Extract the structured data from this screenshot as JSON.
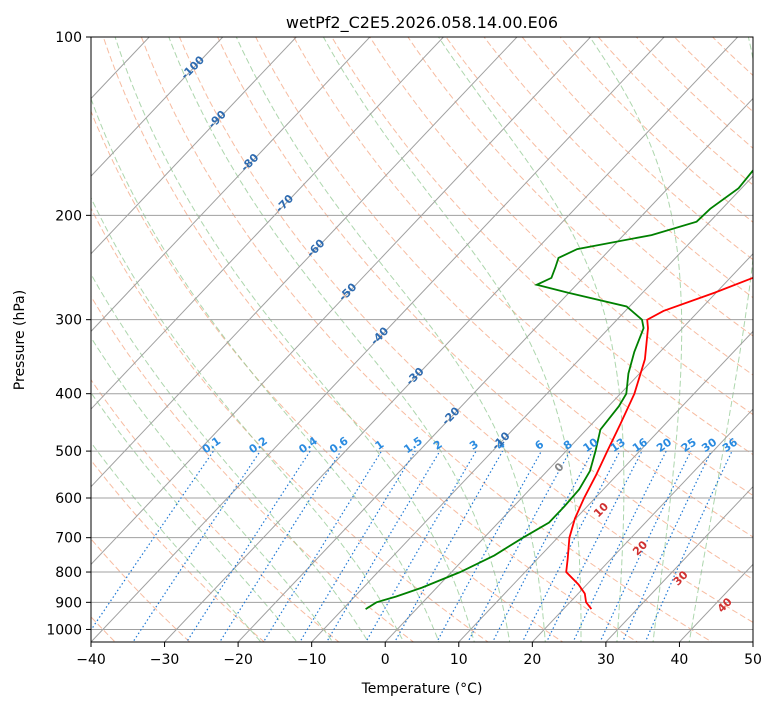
{
  "chart_data": {
    "type": "line",
    "subtype": "skew-t log-p",
    "title": "wetPf2_C2E5.2026.058.14.00.E06",
    "xlabel": "Temperature (°C)",
    "ylabel": "Pressure (hPa)",
    "xlim": [
      -40,
      50
    ],
    "ylim": [
      1050,
      100
    ],
    "x_ticks": [
      -40,
      -30,
      -20,
      -10,
      0,
      10,
      20,
      30,
      40,
      50
    ],
    "x_tick_labels": [
      "−40",
      "−30",
      "−20",
      "−10",
      "0",
      "10",
      "20",
      "30",
      "40",
      "50"
    ],
    "y_ticks": [
      1000,
      900,
      800,
      700,
      600,
      500,
      400,
      300,
      200,
      100
    ],
    "y_tick_labels": [
      "1000",
      "900",
      "800",
      "700",
      "600",
      "500",
      "400",
      "300",
      "200",
      "100"
    ],
    "skew_deg_per_log_unit": 76.3,
    "isotherms": [
      -140,
      -130,
      -120,
      -110,
      -100,
      -90,
      -80,
      -70,
      -60,
      -50,
      -40,
      -30,
      -20,
      -10,
      0,
      10,
      20,
      30,
      40,
      50
    ],
    "dry_adiabats_theta_c": [
      -70,
      -60,
      -50,
      -40,
      -30,
      -20,
      -10,
      0,
      10,
      20,
      30,
      40,
      50,
      60,
      70,
      80,
      90,
      100,
      110,
      120,
      130,
      140,
      150,
      160,
      170,
      180,
      190,
      200,
      210,
      220
    ],
    "moist_adiabat_starts_c": [
      -20,
      -15,
      -10,
      -5,
      0,
      5,
      10,
      15,
      20,
      25,
      30,
      35,
      40
    ],
    "mixing_ratios": [
      0.1,
      0.2,
      0.4,
      0.6,
      1,
      1.5,
      2,
      3,
      4,
      6,
      8,
      10,
      13,
      16,
      20,
      25,
      30,
      36
    ],
    "mixing_ratio_labels": [
      "0.1",
      "0.2",
      "0.4",
      "0.6",
      "1",
      "1.5",
      "2",
      "3",
      "4",
      "6",
      "8",
      "10",
      "13",
      "16",
      "20",
      "25",
      "30",
      "36"
    ],
    "saturation_labels": [
      "-100",
      "-90",
      "-80",
      "-70",
      "-60",
      "-50",
      "-40",
      "-30",
      "-20",
      "-10"
    ],
    "saturation_labels_isotherm_c": [
      -100,
      -90,
      -80,
      -70,
      -60,
      -50,
      -40,
      -30,
      -20,
      -10
    ],
    "saturation_labels_pressure": [
      112,
      137,
      162,
      190,
      226,
      268,
      318,
      372,
      434,
      478
    ],
    "dry_adiabat_labels": [
      "0",
      "10",
      "20",
      "30",
      "40"
    ],
    "dry_adiabat_labels_temp_c": [
      24,
      29.7,
      35,
      40.5,
      46.5
    ],
    "dry_adiabat_labels_pressure": [
      530,
      625,
      725,
      815,
      905
    ],
    "series": [
      {
        "name": "Temperature",
        "color": "#ff0000",
        "points": [
          [
            924,
            23.8
          ],
          [
            900,
            22.2
          ],
          [
            870,
            20.9
          ],
          [
            840,
            18.9
          ],
          [
            800,
            15.6
          ],
          [
            760,
            14.1
          ],
          [
            700,
            11.6
          ],
          [
            650,
            9.9
          ],
          [
            600,
            8.5
          ],
          [
            550,
            7.2
          ],
          [
            500,
            5.6
          ],
          [
            450,
            3.9
          ],
          [
            400,
            1.9
          ],
          [
            350,
            -1.1
          ],
          [
            310,
            -4.7
          ],
          [
            300,
            -5.9
          ],
          [
            290,
            -4.8
          ],
          [
            270,
            -0.2
          ],
          [
            250,
            4.2
          ],
          [
            230,
            7.0
          ],
          [
            210,
            8.3
          ],
          [
            190,
            9.4
          ],
          [
            175,
            11.6
          ],
          [
            160,
            13.8
          ],
          [
            140,
            16.7
          ],
          [
            120,
            18.1
          ],
          [
            110,
            19.5
          ],
          [
            100,
            22.1
          ]
        ]
      },
      {
        "name": "Dewpoint",
        "color": "#008000",
        "points": [
          [
            924,
            -6.9
          ],
          [
            900,
            -6.3
          ],
          [
            880,
            -4.4
          ],
          [
            850,
            -2.0
          ],
          [
            800,
            1.2
          ],
          [
            750,
            3.7
          ],
          [
            700,
            5.3
          ],
          [
            660,
            6.9
          ],
          [
            620,
            6.9
          ],
          [
            580,
            6.7
          ],
          [
            540,
            5.8
          ],
          [
            500,
            4.0
          ],
          [
            460,
            1.9
          ],
          [
            420,
            1.4
          ],
          [
            400,
            0.8
          ],
          [
            370,
            -1.5
          ],
          [
            340,
            -3.5
          ],
          [
            310,
            -5.3
          ],
          [
            300,
            -6.6
          ],
          [
            285,
            -10.4
          ],
          [
            270,
            -20.2
          ],
          [
            262,
            -25.4
          ],
          [
            255,
            -24.3
          ],
          [
            245,
            -25.1
          ],
          [
            236,
            -25.9
          ],
          [
            228,
            -24.5
          ],
          [
            216,
            -16.2
          ],
          [
            205,
            -11.8
          ],
          [
            195,
            -11.6
          ],
          [
            180,
            -10.4
          ],
          [
            165,
            -10.8
          ],
          [
            150,
            -10.1
          ],
          [
            140,
            -8.8
          ],
          [
            125,
            -6.5
          ],
          [
            115,
            -3.4
          ],
          [
            106,
            1.4
          ],
          [
            100,
            4.1
          ]
        ]
      }
    ],
    "colors": {
      "temperature": "#ff0000",
      "dewpoint": "#008000",
      "isotherm": "#a0a0a0",
      "isobar": "#a0a0a0",
      "dry_adiabat": "#f4a582",
      "moist_adiabat": "#91c891",
      "mixing_ratio": "#1f78d4",
      "saturation_label": "#2e6bb0",
      "dry_label": "#d03030",
      "zero_label": "#888888",
      "boundary_curve": "#d9c3a3"
    },
    "grid": true
  }
}
